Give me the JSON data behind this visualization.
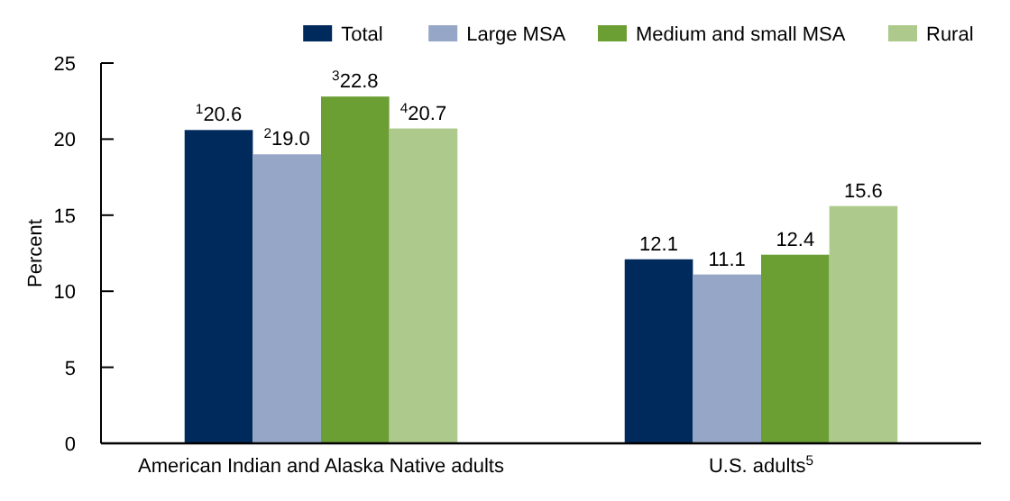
{
  "chart_data": {
    "type": "bar",
    "ylabel": "Percent",
    "categories": [
      "American Indian and Alaska Native adults",
      "U.S. adults$^{5}$"
    ],
    "series": [
      {
        "name": "Total",
        "color": "#002a5c",
        "values": [
          20.6,
          12.1
        ],
        "value_labels": [
          "$^{1}$20.6",
          "12.1"
        ]
      },
      {
        "name": "Large MSA",
        "color": "#96a6c6",
        "values": [
          19.0,
          11.1
        ],
        "value_labels": [
          "$^{2}$19.0",
          "11.1"
        ]
      },
      {
        "name": "Medium and small MSA",
        "color": "#6b9e33",
        "values": [
          22.8,
          12.4
        ],
        "value_labels": [
          "$^{3}$22.8",
          "12.4"
        ]
      },
      {
        "name": "Rural",
        "color": "#adc98b",
        "values": [
          20.7,
          15.6
        ],
        "value_labels": [
          "$^{4}$20.7",
          "15.6"
        ]
      }
    ],
    "ylim": [
      0,
      25
    ],
    "yticks": [
      0,
      5,
      10,
      15,
      20,
      25
    ],
    "grid": false,
    "legend": "top right"
  }
}
